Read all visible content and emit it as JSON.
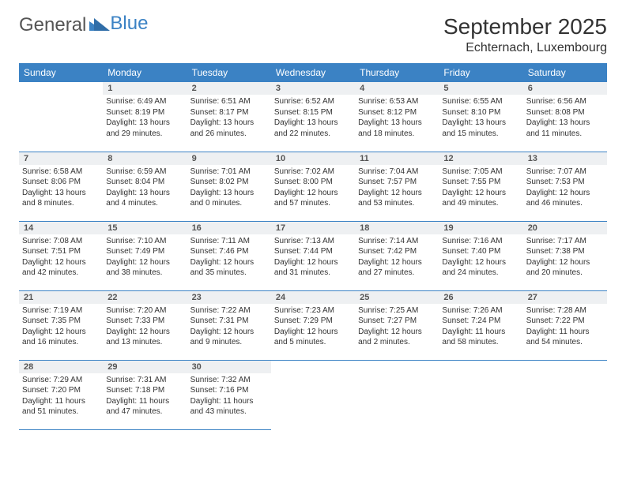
{
  "logo": {
    "text_top": "General",
    "text_blue": "Blue"
  },
  "title": "September 2025",
  "location": "Echternach, Luxembourg",
  "colors": {
    "header_bg": "#3b82c4",
    "header_fg": "#ffffff",
    "daynum_bg": "#eef0f2",
    "border": "#3b82c4",
    "text": "#333333"
  },
  "weekdays": [
    "Sunday",
    "Monday",
    "Tuesday",
    "Wednesday",
    "Thursday",
    "Friday",
    "Saturday"
  ],
  "weeks": [
    [
      {
        "day": "",
        "sunrise": "",
        "sunset": "",
        "daylight": ""
      },
      {
        "day": "1",
        "sunrise": "Sunrise: 6:49 AM",
        "sunset": "Sunset: 8:19 PM",
        "daylight": "Daylight: 13 hours and 29 minutes."
      },
      {
        "day": "2",
        "sunrise": "Sunrise: 6:51 AM",
        "sunset": "Sunset: 8:17 PM",
        "daylight": "Daylight: 13 hours and 26 minutes."
      },
      {
        "day": "3",
        "sunrise": "Sunrise: 6:52 AM",
        "sunset": "Sunset: 8:15 PM",
        "daylight": "Daylight: 13 hours and 22 minutes."
      },
      {
        "day": "4",
        "sunrise": "Sunrise: 6:53 AM",
        "sunset": "Sunset: 8:12 PM",
        "daylight": "Daylight: 13 hours and 18 minutes."
      },
      {
        "day": "5",
        "sunrise": "Sunrise: 6:55 AM",
        "sunset": "Sunset: 8:10 PM",
        "daylight": "Daylight: 13 hours and 15 minutes."
      },
      {
        "day": "6",
        "sunrise": "Sunrise: 6:56 AM",
        "sunset": "Sunset: 8:08 PM",
        "daylight": "Daylight: 13 hours and 11 minutes."
      }
    ],
    [
      {
        "day": "7",
        "sunrise": "Sunrise: 6:58 AM",
        "sunset": "Sunset: 8:06 PM",
        "daylight": "Daylight: 13 hours and 8 minutes."
      },
      {
        "day": "8",
        "sunrise": "Sunrise: 6:59 AM",
        "sunset": "Sunset: 8:04 PM",
        "daylight": "Daylight: 13 hours and 4 minutes."
      },
      {
        "day": "9",
        "sunrise": "Sunrise: 7:01 AM",
        "sunset": "Sunset: 8:02 PM",
        "daylight": "Daylight: 13 hours and 0 minutes."
      },
      {
        "day": "10",
        "sunrise": "Sunrise: 7:02 AM",
        "sunset": "Sunset: 8:00 PM",
        "daylight": "Daylight: 12 hours and 57 minutes."
      },
      {
        "day": "11",
        "sunrise": "Sunrise: 7:04 AM",
        "sunset": "Sunset: 7:57 PM",
        "daylight": "Daylight: 12 hours and 53 minutes."
      },
      {
        "day": "12",
        "sunrise": "Sunrise: 7:05 AM",
        "sunset": "Sunset: 7:55 PM",
        "daylight": "Daylight: 12 hours and 49 minutes."
      },
      {
        "day": "13",
        "sunrise": "Sunrise: 7:07 AM",
        "sunset": "Sunset: 7:53 PM",
        "daylight": "Daylight: 12 hours and 46 minutes."
      }
    ],
    [
      {
        "day": "14",
        "sunrise": "Sunrise: 7:08 AM",
        "sunset": "Sunset: 7:51 PM",
        "daylight": "Daylight: 12 hours and 42 minutes."
      },
      {
        "day": "15",
        "sunrise": "Sunrise: 7:10 AM",
        "sunset": "Sunset: 7:49 PM",
        "daylight": "Daylight: 12 hours and 38 minutes."
      },
      {
        "day": "16",
        "sunrise": "Sunrise: 7:11 AM",
        "sunset": "Sunset: 7:46 PM",
        "daylight": "Daylight: 12 hours and 35 minutes."
      },
      {
        "day": "17",
        "sunrise": "Sunrise: 7:13 AM",
        "sunset": "Sunset: 7:44 PM",
        "daylight": "Daylight: 12 hours and 31 minutes."
      },
      {
        "day": "18",
        "sunrise": "Sunrise: 7:14 AM",
        "sunset": "Sunset: 7:42 PM",
        "daylight": "Daylight: 12 hours and 27 minutes."
      },
      {
        "day": "19",
        "sunrise": "Sunrise: 7:16 AM",
        "sunset": "Sunset: 7:40 PM",
        "daylight": "Daylight: 12 hours and 24 minutes."
      },
      {
        "day": "20",
        "sunrise": "Sunrise: 7:17 AM",
        "sunset": "Sunset: 7:38 PM",
        "daylight": "Daylight: 12 hours and 20 minutes."
      }
    ],
    [
      {
        "day": "21",
        "sunrise": "Sunrise: 7:19 AM",
        "sunset": "Sunset: 7:35 PM",
        "daylight": "Daylight: 12 hours and 16 minutes."
      },
      {
        "day": "22",
        "sunrise": "Sunrise: 7:20 AM",
        "sunset": "Sunset: 7:33 PM",
        "daylight": "Daylight: 12 hours and 13 minutes."
      },
      {
        "day": "23",
        "sunrise": "Sunrise: 7:22 AM",
        "sunset": "Sunset: 7:31 PM",
        "daylight": "Daylight: 12 hours and 9 minutes."
      },
      {
        "day": "24",
        "sunrise": "Sunrise: 7:23 AM",
        "sunset": "Sunset: 7:29 PM",
        "daylight": "Daylight: 12 hours and 5 minutes."
      },
      {
        "day": "25",
        "sunrise": "Sunrise: 7:25 AM",
        "sunset": "Sunset: 7:27 PM",
        "daylight": "Daylight: 12 hours and 2 minutes."
      },
      {
        "day": "26",
        "sunrise": "Sunrise: 7:26 AM",
        "sunset": "Sunset: 7:24 PM",
        "daylight": "Daylight: 11 hours and 58 minutes."
      },
      {
        "day": "27",
        "sunrise": "Sunrise: 7:28 AM",
        "sunset": "Sunset: 7:22 PM",
        "daylight": "Daylight: 11 hours and 54 minutes."
      }
    ],
    [
      {
        "day": "28",
        "sunrise": "Sunrise: 7:29 AM",
        "sunset": "Sunset: 7:20 PM",
        "daylight": "Daylight: 11 hours and 51 minutes."
      },
      {
        "day": "29",
        "sunrise": "Sunrise: 7:31 AM",
        "sunset": "Sunset: 7:18 PM",
        "daylight": "Daylight: 11 hours and 47 minutes."
      },
      {
        "day": "30",
        "sunrise": "Sunrise: 7:32 AM",
        "sunset": "Sunset: 7:16 PM",
        "daylight": "Daylight: 11 hours and 43 minutes."
      },
      {
        "day": "",
        "sunrise": "",
        "sunset": "",
        "daylight": ""
      },
      {
        "day": "",
        "sunrise": "",
        "sunset": "",
        "daylight": ""
      },
      {
        "day": "",
        "sunrise": "",
        "sunset": "",
        "daylight": ""
      },
      {
        "day": "",
        "sunrise": "",
        "sunset": "",
        "daylight": ""
      }
    ]
  ]
}
